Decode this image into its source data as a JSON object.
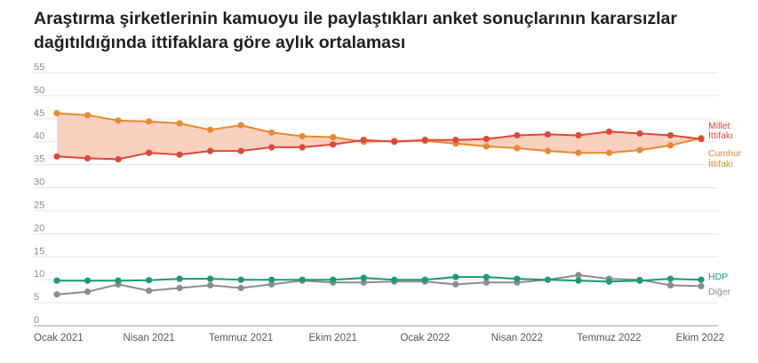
{
  "header": {
    "title_line1": "Araştırma şirketlerinin kamuoyu ile paylaştıkları anket sonuçlarının kararsızlar",
    "title_line2": "dağıtıldığında ittifaklara göre aylık ortalaması"
  },
  "chart_data": {
    "type": "line",
    "title": "Araştırma şirketlerinin kamuoyu ile paylaştıkları anket sonuçlarının kararsızlar dağıtıldığında ittifaklara göre aylık ortalaması",
    "xlabel": "",
    "ylabel": "",
    "ylim": [
      0,
      55
    ],
    "yticks": [
      0,
      5,
      10,
      15,
      20,
      25,
      30,
      35,
      40,
      45,
      50,
      55
    ],
    "grid": true,
    "legend": "end-of-line labels (right)",
    "x": [
      "2021-01",
      "2021-02",
      "2021-03",
      "2021-04",
      "2021-05",
      "2021-06",
      "2021-07",
      "2021-08",
      "2021-09",
      "2021-10",
      "2021-11",
      "2021-12",
      "2022-01",
      "2022-02",
      "2022-03",
      "2022-04",
      "2022-05",
      "2022-06",
      "2022-07",
      "2022-08",
      "2022-09",
      "2022-10"
    ],
    "x_ticks": [
      {
        "x": "2021-01",
        "label": "Ocak 2021"
      },
      {
        "x": "2021-04",
        "label": "Nisan 2021"
      },
      {
        "x": "2021-07",
        "label": "Temmuz 2021"
      },
      {
        "x": "2021-10",
        "label": "Ekim 2021"
      },
      {
        "x": "2022-01",
        "label": "Ocak 2022"
      },
      {
        "x": "2022-04",
        "label": "Nisan 2022"
      },
      {
        "x": "2022-07",
        "label": "Temmuz 2022"
      },
      {
        "x": "2022-10",
        "label": "Ekim 2022"
      }
    ],
    "shaded_between": [
      "Cumhur İttifakı",
      "Millet İttifakı"
    ],
    "shade_color": "#f9c6ae",
    "series": [
      {
        "name": "Cumhur İttifakı",
        "label_lines": [
          "Cumhur",
          "İttifakı"
        ],
        "color": "#e8892f",
        "values": [
          46.2,
          45.8,
          44.6,
          44.4,
          44.0,
          42.6,
          43.6,
          42.0,
          41.2,
          41.0,
          40.0,
          40.2,
          40.2,
          39.6,
          39.0,
          38.6,
          38.0,
          37.6,
          37.6,
          38.2,
          39.2,
          40.8
        ]
      },
      {
        "name": "Millet İttifakı",
        "label_lines": [
          "Millet",
          "İttifakı"
        ],
        "color": "#e0463a",
        "values": [
          36.8,
          36.4,
          36.2,
          37.6,
          37.2,
          38.0,
          38.0,
          38.8,
          38.8,
          39.4,
          40.4,
          40.0,
          40.4,
          40.4,
          40.6,
          41.4,
          41.6,
          41.4,
          42.2,
          41.8,
          41.4,
          40.6
        ]
      },
      {
        "name": "HDP",
        "label_lines": [
          "HDP"
        ],
        "color": "#1a9a78",
        "values": [
          9.8,
          9.8,
          9.8,
          9.9,
          10.2,
          10.2,
          10.0,
          10.0,
          10.0,
          10.0,
          10.4,
          10.0,
          10.0,
          10.6,
          10.6,
          10.2,
          10.0,
          9.8,
          9.6,
          9.8,
          10.2,
          10.0
        ]
      },
      {
        "name": "Diğer",
        "label_lines": [
          "Diğer"
        ],
        "color": "#8c8c8c",
        "values": [
          6.8,
          7.4,
          9.0,
          7.6,
          8.2,
          8.8,
          8.2,
          9.0,
          9.8,
          9.4,
          9.4,
          9.6,
          9.6,
          9.0,
          9.4,
          9.4,
          10.0,
          11.0,
          10.2,
          10.0,
          8.8,
          8.6
        ]
      }
    ]
  }
}
